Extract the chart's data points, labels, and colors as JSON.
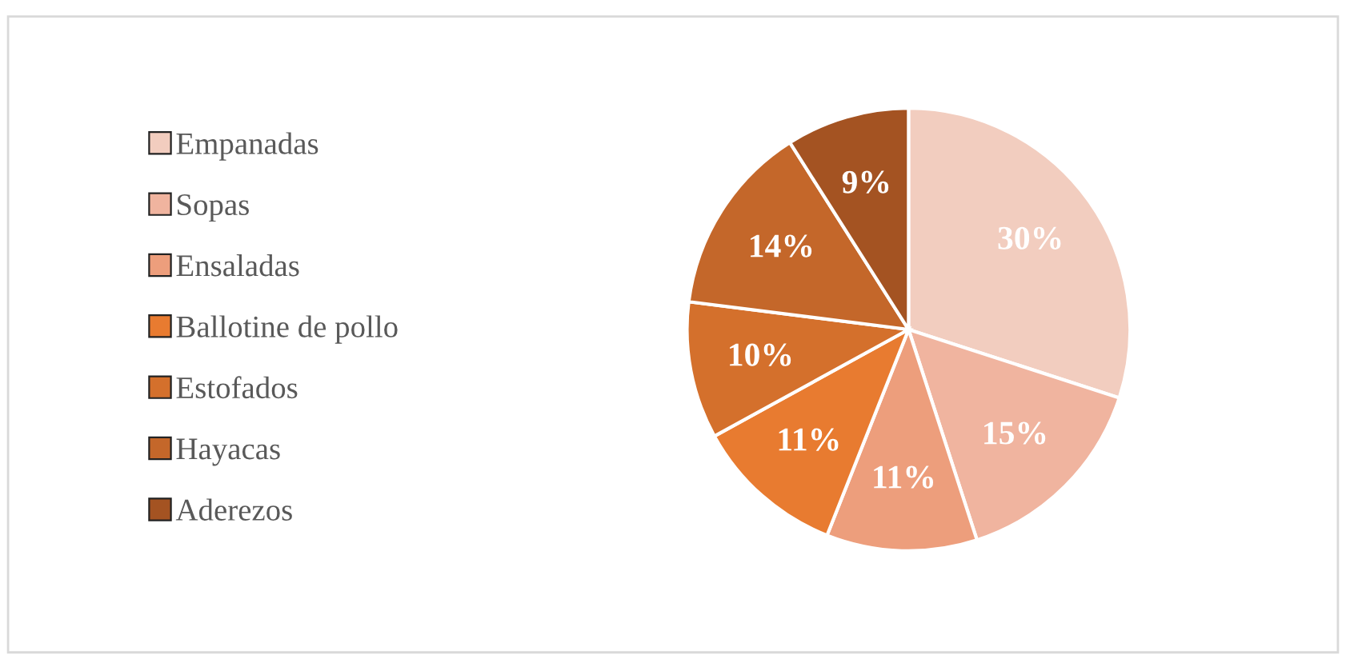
{
  "chart_data": {
    "type": "pie",
    "categories": [
      "Empanadas",
      "Sopas",
      "Ensaladas",
      "Ballotine de pollo",
      "Estofados",
      "Hayacas",
      "Aderezos"
    ],
    "values": [
      30,
      15,
      11,
      11,
      10,
      14,
      9
    ],
    "colors": [
      "#f2cdbf",
      "#f0b49f",
      "#ed9e7c",
      "#e87b30",
      "#d4702c",
      "#c4672a",
      "#a45322"
    ],
    "value_labels": [
      "30%",
      "15%",
      "11%",
      "11%",
      "10%",
      "14%",
      "9%"
    ],
    "legend": "left"
  }
}
